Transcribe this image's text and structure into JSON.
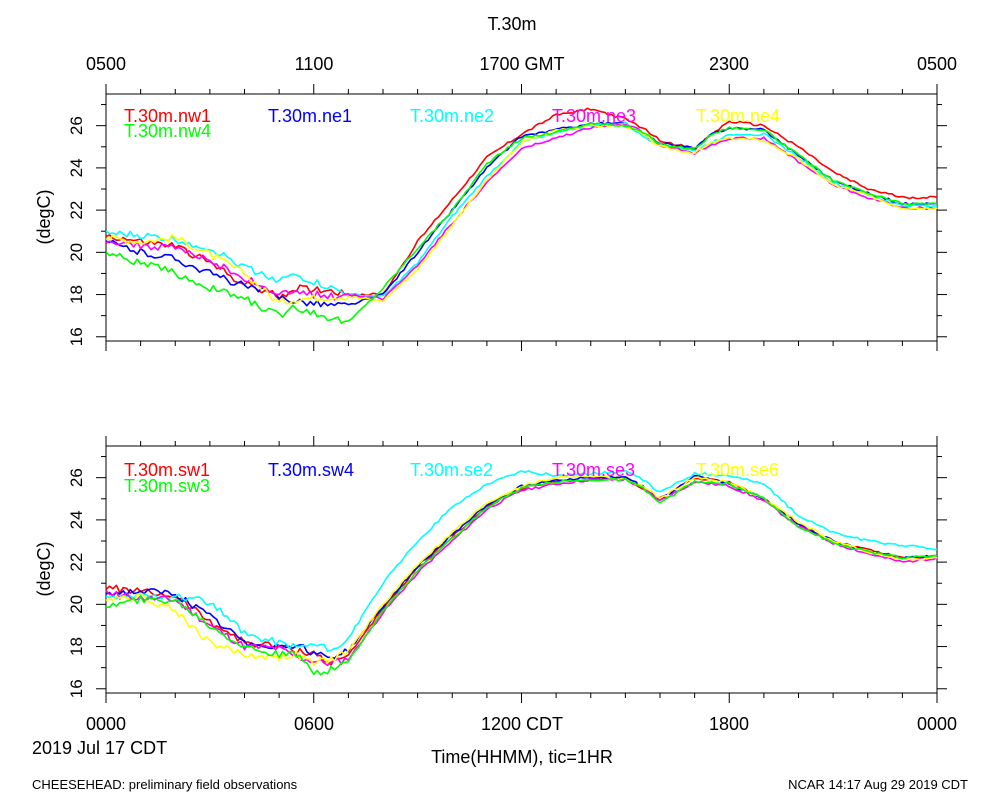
{
  "title": "T.30m",
  "top_axis_ticks": [
    "0500",
    "1100",
    "1700 GMT",
    "2300",
    "0500"
  ],
  "bottom_axis_ticks": [
    "0000",
    "0600",
    "1200 CDT",
    "1800",
    "0000"
  ],
  "date_label": "2019 Jul 17 CDT",
  "xlabel": "Time(HHMM), tic=1HR",
  "footer_left": "CHEESEHEAD: preliminary field observations",
  "footer_right": "NCAR 14:17 Aug 29 2019 CDT",
  "chart_data": [
    {
      "type": "line",
      "panel": "top",
      "ylabel": "(degC)",
      "xlim": [
        0,
        24
      ],
      "ylim": [
        15.8,
        27.5
      ],
      "yticks": [
        16,
        18,
        20,
        22,
        24,
        26
      ],
      "x_unit": "hours CDT",
      "series": [
        {
          "name": "T.30m.nw1",
          "color": "#ff0000",
          "x": [
            0,
            1,
            2,
            3,
            4,
            5,
            5.5,
            6.5,
            7,
            8,
            9,
            10,
            11,
            12,
            13,
            14,
            15,
            15.5,
            16,
            17,
            17.5,
            18,
            19,
            20,
            21,
            22,
            23,
            24
          ],
          "y": [
            20.8,
            20.5,
            20.3,
            19.5,
            18.5,
            17.9,
            18.3,
            18.2,
            18.0,
            18.0,
            20.5,
            22.5,
            24.5,
            25.6,
            26.5,
            26.8,
            26.3,
            25.9,
            25.3,
            24.9,
            25.6,
            26.2,
            26.0,
            25.0,
            23.8,
            23.0,
            22.6,
            22.6
          ]
        },
        {
          "name": "T.30m.ne1",
          "color": "#0000ff",
          "x": [
            0,
            1,
            2,
            3,
            4,
            5,
            5.5,
            6.5,
            7,
            8,
            9,
            10,
            11,
            12,
            13,
            14,
            15,
            15.5,
            16,
            17,
            17.5,
            18,
            19,
            20,
            21,
            22,
            23,
            24
          ],
          "y": [
            20.5,
            20.0,
            19.7,
            19.0,
            18.4,
            17.9,
            17.7,
            17.5,
            17.5,
            18.0,
            20.0,
            22.0,
            24.0,
            25.5,
            25.8,
            26.1,
            26.1,
            25.6,
            25.2,
            24.9,
            25.6,
            25.9,
            25.8,
            24.6,
            23.4,
            22.8,
            22.3,
            22.3
          ]
        },
        {
          "name": "T.30m.ne2",
          "color": "#00ffff",
          "x": [
            0,
            1,
            2,
            3,
            4,
            5,
            5.5,
            6.5,
            7,
            8,
            9,
            10,
            11,
            12,
            13,
            14,
            15,
            15.5,
            16,
            17,
            17.5,
            18,
            19,
            20,
            21,
            22,
            23,
            24
          ],
          "y": [
            20.9,
            20.8,
            20.6,
            20.2,
            19.3,
            18.7,
            18.9,
            18.3,
            18.0,
            17.9,
            19.5,
            21.7,
            23.6,
            25.2,
            25.7,
            26.0,
            26.1,
            25.5,
            25.1,
            24.8,
            25.2,
            25.6,
            25.6,
            24.5,
            23.3,
            22.7,
            22.2,
            22.2
          ]
        },
        {
          "name": "T.30m.ne3",
          "color": "#ff00ff",
          "x": [
            0,
            1,
            2,
            3,
            4,
            5,
            5.5,
            6.5,
            7,
            8,
            9,
            10,
            11,
            12,
            13,
            14,
            15,
            15.5,
            16,
            17,
            17.5,
            18,
            19,
            20,
            21,
            22,
            23,
            24
          ],
          "y": [
            20.6,
            20.3,
            20.2,
            19.6,
            18.8,
            18.0,
            18.1,
            17.9,
            18.0,
            17.8,
            19.4,
            21.4,
            23.3,
            24.9,
            25.4,
            25.9,
            26.1,
            25.7,
            25.1,
            24.7,
            25.1,
            25.4,
            25.4,
            24.3,
            23.2,
            22.6,
            22.1,
            22.1
          ]
        },
        {
          "name": "T.30m.ne4",
          "color": "#ffff00",
          "x": [
            0,
            1,
            2,
            3,
            4,
            5,
            5.5,
            6.5,
            7,
            8,
            9,
            10,
            11,
            12,
            13,
            14,
            15,
            15.5,
            16,
            17,
            17.5,
            18,
            19,
            20,
            21,
            22,
            23,
            24
          ],
          "y": [
            20.7,
            20.5,
            20.7,
            19.9,
            19.0,
            17.6,
            17.8,
            17.9,
            17.9,
            17.7,
            19.2,
            21.3,
            23.4,
            25.2,
            25.8,
            26.0,
            26.0,
            25.6,
            25.0,
            24.7,
            25.2,
            25.4,
            25.3,
            24.4,
            23.2,
            22.7,
            22.1,
            22.1
          ]
        },
        {
          "name": "T.30m.nw4",
          "color": "#00ff00",
          "x": [
            0,
            1,
            2,
            3,
            4,
            5,
            5.5,
            6.5,
            7,
            8,
            9,
            10,
            11,
            12,
            13,
            14,
            15,
            15.5,
            16,
            17,
            17.5,
            18,
            19,
            20,
            21,
            22,
            23,
            24
          ],
          "y": [
            20.0,
            19.5,
            19.0,
            18.3,
            17.8,
            17.0,
            17.4,
            16.9,
            16.7,
            18.3,
            20.2,
            22.0,
            24.2,
            25.4,
            25.7,
            26.1,
            26.0,
            25.7,
            25.1,
            24.9,
            25.6,
            25.9,
            25.8,
            24.6,
            23.4,
            22.8,
            22.3,
            22.3
          ]
        }
      ]
    },
    {
      "type": "line",
      "panel": "bottom",
      "ylabel": "(degC)",
      "xlim": [
        0,
        24
      ],
      "ylim": [
        15.8,
        27.5
      ],
      "yticks": [
        16,
        18,
        20,
        22,
        24,
        26
      ],
      "x_unit": "hours CDT",
      "series": [
        {
          "name": "T.30m.sw1",
          "color": "#ff0000",
          "x": [
            0,
            1,
            2,
            3,
            4,
            5,
            5.5,
            6,
            6.5,
            7,
            8,
            9,
            10,
            11,
            12,
            13,
            14,
            15,
            15.5,
            16,
            17,
            18,
            19,
            20,
            21,
            22,
            23,
            24
          ],
          "y": [
            20.8,
            20.6,
            20.4,
            19.2,
            18.2,
            18.0,
            17.8,
            17.7,
            17.2,
            17.6,
            19.8,
            21.7,
            23.2,
            24.6,
            25.5,
            25.8,
            25.9,
            26.0,
            25.5,
            25.0,
            26.0,
            25.8,
            25.0,
            23.8,
            23.0,
            22.6,
            22.2,
            22.3
          ]
        },
        {
          "name": "T.30m.sw4",
          "color": "#0000ff",
          "x": [
            0,
            1,
            2,
            3,
            4,
            5,
            5.5,
            6,
            6.5,
            7,
            8,
            9,
            10,
            11,
            12,
            13,
            14,
            15,
            15.5,
            16,
            17,
            18,
            19,
            20,
            21,
            22,
            23,
            24
          ],
          "y": [
            20.5,
            20.6,
            20.5,
            19.4,
            18.2,
            18.0,
            18.1,
            17.7,
            17.5,
            17.8,
            19.9,
            21.8,
            23.3,
            24.7,
            25.6,
            25.9,
            26.0,
            26.0,
            25.6,
            24.9,
            26.1,
            25.7,
            25.0,
            23.8,
            23.0,
            22.5,
            22.2,
            22.3
          ]
        },
        {
          "name": "T.30m.se2",
          "color": "#00ffff",
          "x": [
            0,
            1,
            2,
            3,
            4,
            5,
            5.5,
            6,
            6.5,
            7,
            8,
            9,
            10,
            11,
            12,
            13,
            14,
            15,
            15.5,
            16,
            17,
            18,
            19,
            20,
            21,
            22,
            23,
            24
          ],
          "y": [
            20.3,
            20.4,
            20.4,
            20.1,
            18.6,
            18.2,
            18.0,
            18.1,
            17.8,
            18.4,
            21.0,
            23.0,
            24.6,
            25.7,
            26.3,
            26.1,
            26.2,
            26.3,
            25.9,
            25.3,
            26.2,
            26.1,
            25.7,
            24.2,
            23.4,
            23.0,
            22.8,
            22.6
          ]
        },
        {
          "name": "T.30m.se3",
          "color": "#ff00ff",
          "x": [
            0,
            1,
            2,
            3,
            4,
            5,
            5.5,
            6,
            6.5,
            7,
            8,
            9,
            10,
            11,
            12,
            13,
            14,
            15,
            15.5,
            16,
            17,
            18,
            19,
            20,
            21,
            22,
            23,
            24
          ],
          "y": [
            20.5,
            20.3,
            20.2,
            19.0,
            18.0,
            17.9,
            17.5,
            17.3,
            17.2,
            17.4,
            19.6,
            21.5,
            23.0,
            24.5,
            25.4,
            25.7,
            25.9,
            25.9,
            25.5,
            24.9,
            25.8,
            25.6,
            24.9,
            23.7,
            22.9,
            22.4,
            22.0,
            22.2
          ]
        },
        {
          "name": "T.30m.se6",
          "color": "#ffff00",
          "x": [
            0,
            1,
            2,
            3,
            4,
            5,
            5.5,
            6,
            6.5,
            7,
            8,
            9,
            10,
            11,
            12,
            13,
            14,
            15,
            15.5,
            16,
            17,
            18,
            19,
            20,
            21,
            22,
            23,
            24
          ],
          "y": [
            20.3,
            20.4,
            19.7,
            18.2,
            17.6,
            17.5,
            17.6,
            17.2,
            17.4,
            17.8,
            20.0,
            21.9,
            23.4,
            24.8,
            25.6,
            26.0,
            26.1,
            25.9,
            25.6,
            25.0,
            26.0,
            25.8,
            25.0,
            23.9,
            23.0,
            22.5,
            22.1,
            22.2
          ]
        },
        {
          "name": "T.30m.sw3",
          "color": "#00ff00",
          "x": [
            0,
            1,
            2,
            3,
            4,
            5,
            5.5,
            6,
            6.5,
            7,
            8,
            9,
            10,
            11,
            12,
            13,
            14,
            15,
            15.5,
            16,
            17,
            18,
            19,
            20,
            21,
            22,
            23,
            24
          ],
          "y": [
            19.9,
            20.2,
            20.2,
            19.0,
            18.0,
            17.6,
            17.6,
            16.8,
            16.9,
            17.3,
            19.7,
            21.6,
            23.1,
            24.6,
            25.5,
            25.8,
            25.9,
            25.9,
            25.5,
            24.8,
            25.8,
            25.7,
            25.0,
            23.7,
            22.9,
            22.5,
            22.2,
            22.3
          ]
        }
      ]
    }
  ]
}
